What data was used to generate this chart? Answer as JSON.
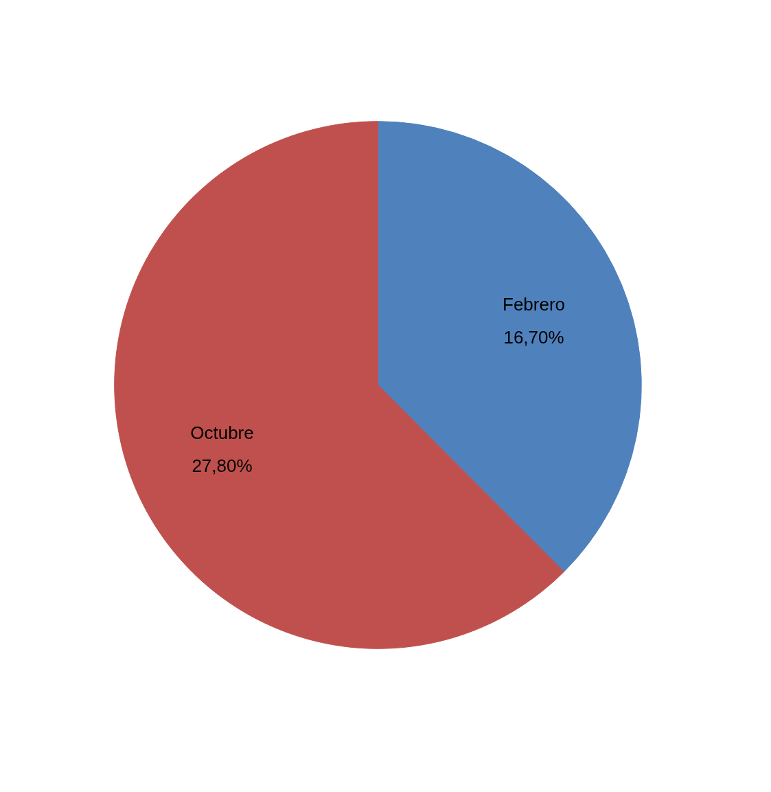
{
  "chart_data": {
    "type": "pie",
    "categories": [
      "Febrero",
      "Octubre"
    ],
    "values": [
      16.7,
      27.8
    ],
    "value_labels": [
      "16,70%",
      "27,80%"
    ],
    "colors": [
      "#4f81bd",
      "#c0504d"
    ]
  }
}
